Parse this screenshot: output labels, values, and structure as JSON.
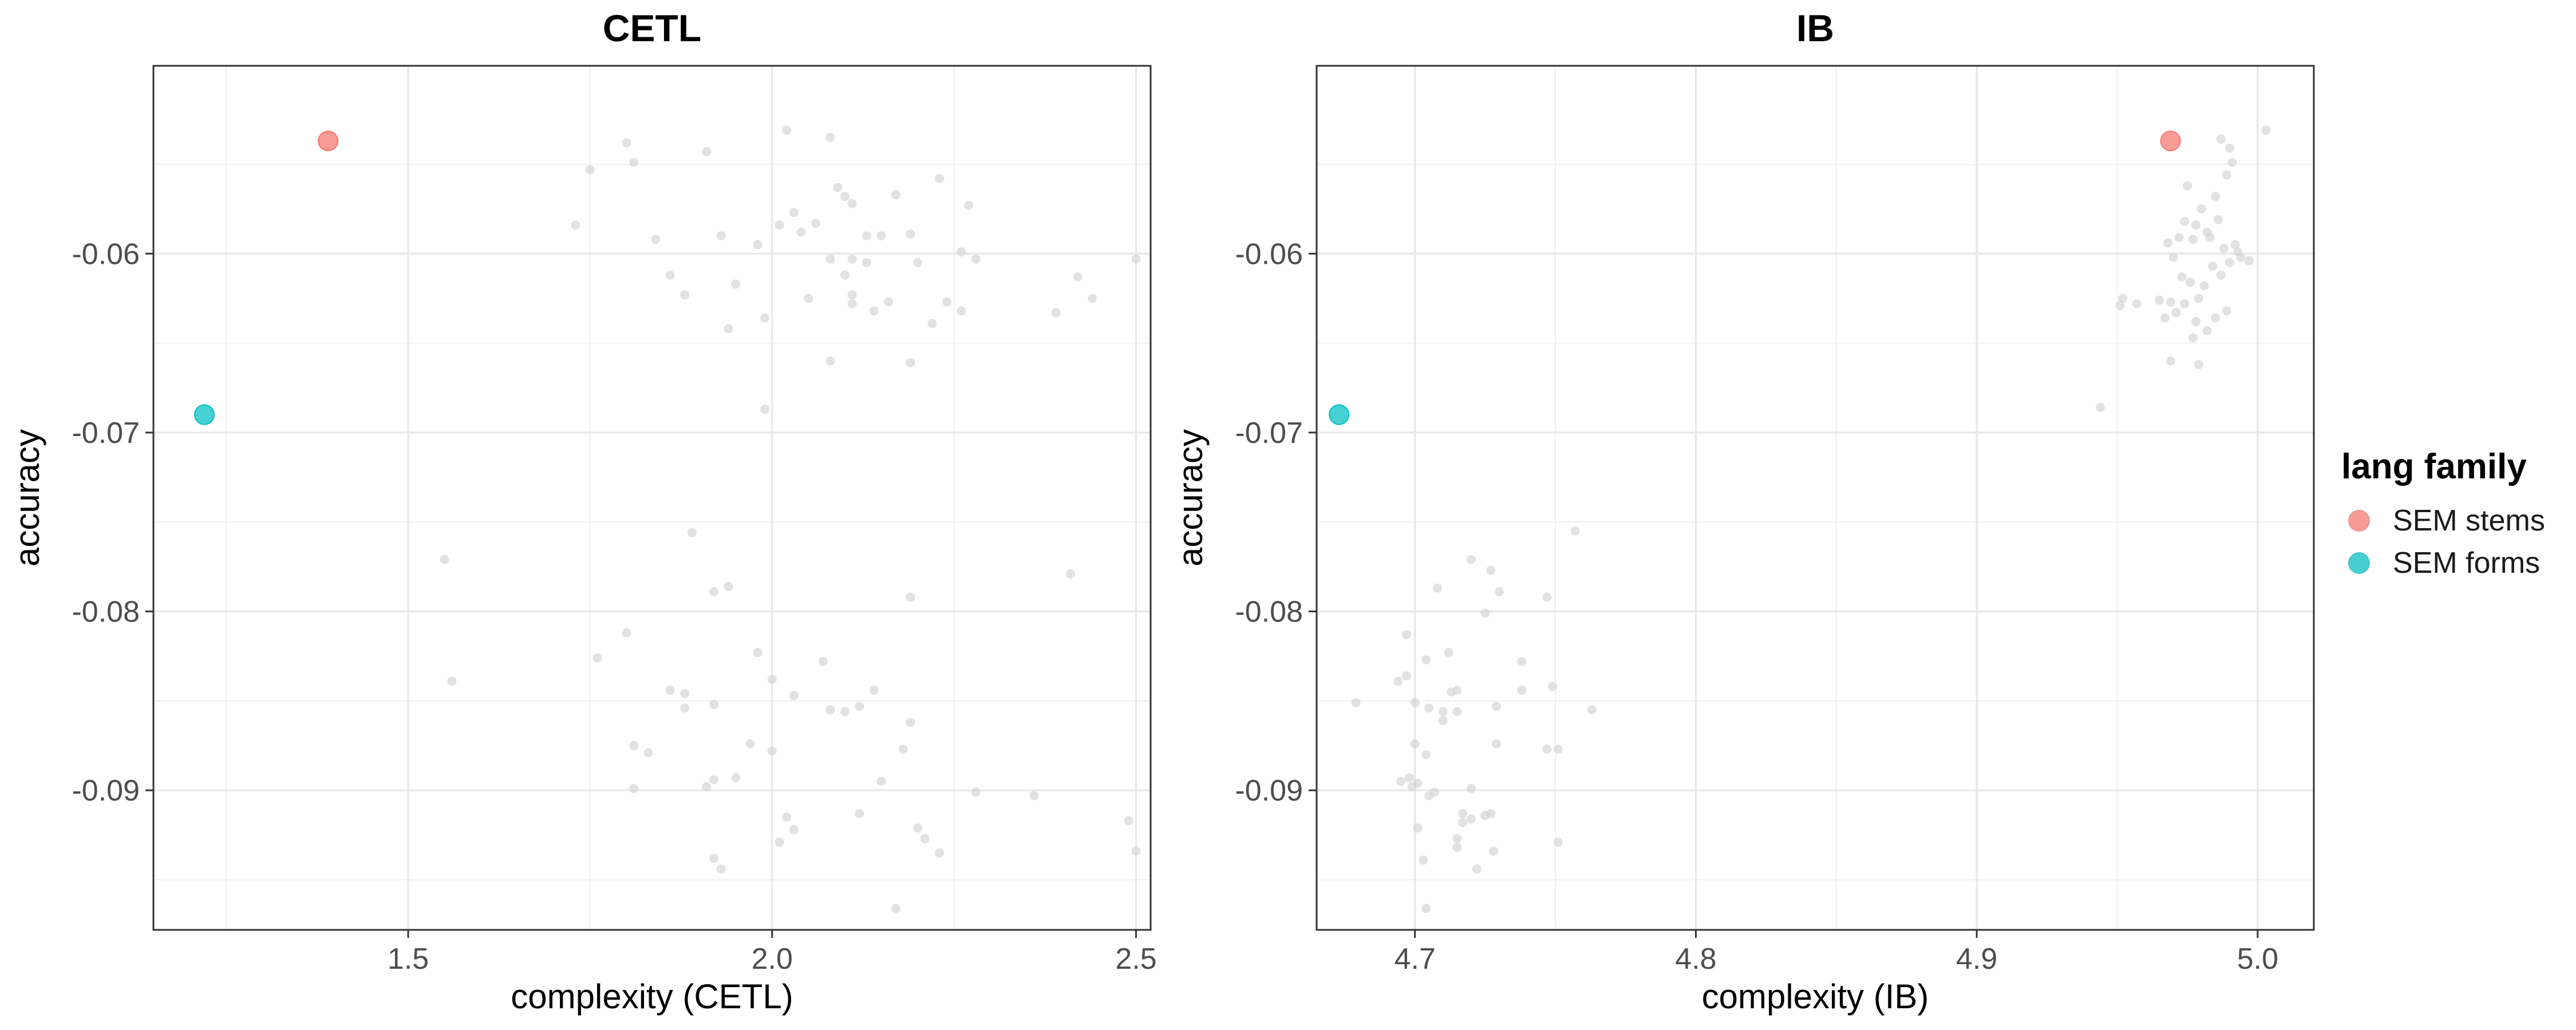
{
  "legend": {
    "title": "lang family",
    "items": [
      {
        "label": "SEM stems",
        "color": "#F8766D"
      },
      {
        "label": "SEM forms",
        "color": "#00BFC4"
      }
    ]
  },
  "chart_data": [
    {
      "type": "scatter",
      "title": "CETL",
      "xlabel": "complexity (CETL)",
      "ylabel": "accuracy",
      "xlim": [
        1.15,
        2.52
      ],
      "ylim": [
        -0.0978,
        -0.0495
      ],
      "xticks": [
        1.5,
        2.0,
        2.5
      ],
      "xtick_labels": [
        "1.5",
        "2.0",
        "2.5"
      ],
      "yticks": [
        -0.06,
        -0.07,
        -0.08,
        -0.09
      ],
      "ytick_labels": [
        "-0.06",
        "-0.07",
        "-0.08",
        "-0.09"
      ],
      "grid": true,
      "highlight": [
        {
          "series": "SEM stems",
          "x": 1.39,
          "y": -0.0537,
          "color": "#F8766D"
        },
        {
          "series": "SEM forms",
          "x": 1.22,
          "y": -0.069,
          "color": "#00BFC4"
        }
      ],
      "background_points": [
        [
          1.8,
          -0.0538
        ],
        [
          1.75,
          -0.0553
        ],
        [
          1.73,
          -0.0584
        ],
        [
          1.81,
          -0.0549
        ],
        [
          1.84,
          -0.0592
        ],
        [
          1.91,
          -0.0543
        ],
        [
          2.02,
          -0.0531
        ],
        [
          2.08,
          -0.0535
        ],
        [
          1.93,
          -0.059
        ],
        [
          1.95,
          -0.0617
        ],
        [
          1.86,
          -0.0612
        ],
        [
          1.88,
          -0.0623
        ],
        [
          1.94,
          -0.0642
        ],
        [
          1.99,
          -0.0636
        ],
        [
          1.98,
          -0.0595
        ],
        [
          2.01,
          -0.0584
        ],
        [
          2.03,
          -0.0577
        ],
        [
          2.04,
          -0.0588
        ],
        [
          2.06,
          -0.0583
        ],
        [
          2.09,
          -0.0563
        ],
        [
          2.1,
          -0.0568
        ],
        [
          2.11,
          -0.0572
        ],
        [
          2.13,
          -0.059
        ],
        [
          2.15,
          -0.059
        ],
        [
          2.17,
          -0.0567
        ],
        [
          2.19,
          -0.0589
        ],
        [
          2.23,
          -0.0558
        ],
        [
          2.27,
          -0.0573
        ],
        [
          2.08,
          -0.0603
        ],
        [
          2.1,
          -0.0612
        ],
        [
          2.11,
          -0.0603
        ],
        [
          2.13,
          -0.0605
        ],
        [
          2.14,
          -0.0632
        ],
        [
          2.11,
          -0.0623
        ],
        [
          2.16,
          -0.0627
        ],
        [
          2.2,
          -0.0605
        ],
        [
          2.22,
          -0.0639
        ],
        [
          2.24,
          -0.0627
        ],
        [
          2.26,
          -0.0599
        ],
        [
          2.28,
          -0.0603
        ],
        [
          2.26,
          -0.0632
        ],
        [
          2.39,
          -0.0633
        ],
        [
          2.42,
          -0.0613
        ],
        [
          2.44,
          -0.0625
        ],
        [
          2.5,
          -0.0603
        ],
        [
          2.08,
          -0.066
        ],
        [
          2.19,
          -0.0661
        ],
        [
          1.99,
          -0.0687
        ],
        [
          2.05,
          -0.0625
        ],
        [
          2.11,
          -0.0628
        ],
        [
          1.55,
          -0.0771
        ],
        [
          1.56,
          -0.0839
        ],
        [
          1.89,
          -0.0756
        ],
        [
          1.92,
          -0.0789
        ],
        [
          1.94,
          -0.0786
        ],
        [
          2.41,
          -0.0779
        ],
        [
          1.8,
          -0.0812
        ],
        [
          1.76,
          -0.0826
        ],
        [
          1.98,
          -0.0823
        ],
        [
          2.07,
          -0.0828
        ],
        [
          2.19,
          -0.0792
        ],
        [
          1.86,
          -0.0844
        ],
        [
          1.88,
          -0.0846
        ],
        [
          1.88,
          -0.0854
        ],
        [
          1.92,
          -0.0852
        ],
        [
          2.0,
          -0.0838
        ],
        [
          2.03,
          -0.0847
        ],
        [
          2.08,
          -0.0855
        ],
        [
          2.1,
          -0.0856
        ],
        [
          2.12,
          -0.0853
        ],
        [
          2.14,
          -0.0844
        ],
        [
          2.19,
          -0.0862
        ],
        [
          1.81,
          -0.0875
        ],
        [
          1.83,
          -0.0879
        ],
        [
          1.92,
          -0.0894
        ],
        [
          1.95,
          -0.0893
        ],
        [
          1.97,
          -0.0874
        ],
        [
          2.0,
          -0.0878
        ],
        [
          2.15,
          -0.0895
        ],
        [
          2.18,
          -0.0877
        ],
        [
          2.28,
          -0.0901
        ],
        [
          2.36,
          -0.0903
        ],
        [
          1.81,
          -0.0899
        ],
        [
          1.91,
          -0.0898
        ],
        [
          2.02,
          -0.0915
        ],
        [
          2.03,
          -0.0922
        ],
        [
          2.12,
          -0.0913
        ],
        [
          2.01,
          -0.0929
        ],
        [
          2.2,
          -0.0921
        ],
        [
          2.21,
          -0.0927
        ],
        [
          2.23,
          -0.0935
        ],
        [
          1.92,
          -0.0938
        ],
        [
          1.93,
          -0.0944
        ],
        [
          2.49,
          -0.0917
        ],
        [
          2.5,
          -0.0934
        ],
        [
          2.17,
          -0.0966
        ]
      ]
    },
    {
      "type": "scatter",
      "title": "IB",
      "xlabel": "complexity (IB)",
      "ylabel": "accuracy",
      "xlim": [
        4.665,
        5.02
      ],
      "ylim": [
        -0.0978,
        -0.0495
      ],
      "xticks": [
        4.7,
        4.8,
        4.9,
        5.0
      ],
      "xtick_labels": [
        "4.7",
        "4.8",
        "4.9",
        "5.0"
      ],
      "yticks": [
        -0.06,
        -0.07,
        -0.08,
        -0.09
      ],
      "ytick_labels": [
        "-0.06",
        "-0.07",
        "-0.08",
        "-0.09"
      ],
      "grid": true,
      "highlight": [
        {
          "series": "SEM stems",
          "x": 4.969,
          "y": -0.0537,
          "color": "#F8766D"
        },
        {
          "series": "SEM forms",
          "x": 4.673,
          "y": -0.069,
          "color": "#00BFC4"
        }
      ],
      "background_points": [
        [
          4.987,
          -0.0536
        ],
        [
          4.99,
          -0.0541
        ],
        [
          4.991,
          -0.0549
        ],
        [
          4.989,
          -0.0556
        ],
        [
          5.003,
          -0.0531
        ],
        [
          4.975,
          -0.0562
        ],
        [
          4.98,
          -0.0575
        ],
        [
          4.978,
          -0.0584
        ],
        [
          4.982,
          -0.0588
        ],
        [
          4.985,
          -0.0568
        ],
        [
          4.972,
          -0.0591
        ],
        [
          4.974,
          -0.0582
        ],
        [
          4.977,
          -0.0592
        ],
        [
          4.983,
          -0.0591
        ],
        [
          4.986,
          -0.0581
        ],
        [
          4.988,
          -0.0597
        ],
        [
          4.992,
          -0.0595
        ],
        [
          4.994,
          -0.0602
        ],
        [
          4.997,
          -0.0604
        ],
        [
          4.99,
          -0.0605
        ],
        [
          4.968,
          -0.0594
        ],
        [
          4.97,
          -0.0602
        ],
        [
          4.973,
          -0.0613
        ],
        [
          4.976,
          -0.0616
        ],
        [
          4.979,
          -0.0625
        ],
        [
          4.981,
          -0.0618
        ],
        [
          4.984,
          -0.0607
        ],
        [
          4.987,
          -0.0612
        ],
        [
          4.989,
          -0.0632
        ],
        [
          4.969,
          -0.0627
        ],
        [
          4.971,
          -0.0633
        ],
        [
          4.974,
          -0.0628
        ],
        [
          4.978,
          -0.0638
        ],
        [
          4.982,
          -0.0643
        ],
        [
          4.985,
          -0.0636
        ],
        [
          4.952,
          -0.0625
        ],
        [
          4.957,
          -0.0628
        ],
        [
          4.951,
          -0.0629
        ],
        [
          4.965,
          -0.0626
        ],
        [
          4.967,
          -0.0636
        ],
        [
          4.977,
          -0.0647
        ],
        [
          4.969,
          -0.066
        ],
        [
          4.979,
          -0.0662
        ],
        [
          4.944,
          -0.0686
        ],
        [
          4.993,
          -0.0599
        ],
        [
          4.757,
          -0.0755
        ],
        [
          4.72,
          -0.0771
        ],
        [
          4.727,
          -0.0777
        ],
        [
          4.708,
          -0.0787
        ],
        [
          4.73,
          -0.0789
        ],
        [
          4.747,
          -0.0792
        ],
        [
          4.725,
          -0.0801
        ],
        [
          4.712,
          -0.0823
        ],
        [
          4.704,
          -0.0827
        ],
        [
          4.738,
          -0.0828
        ],
        [
          4.697,
          -0.0813
        ],
        [
          4.694,
          -0.0839
        ],
        [
          4.697,
          -0.0836
        ],
        [
          4.713,
          -0.0845
        ],
        [
          4.715,
          -0.0844
        ],
        [
          4.738,
          -0.0844
        ],
        [
          4.749,
          -0.0842
        ],
        [
          4.679,
          -0.0851
        ],
        [
          4.7,
          -0.0851
        ],
        [
          4.705,
          -0.0854
        ],
        [
          4.71,
          -0.0856
        ],
        [
          4.71,
          -0.0861
        ],
        [
          4.715,
          -0.0856
        ],
        [
          4.729,
          -0.0853
        ],
        [
          4.763,
          -0.0855
        ],
        [
          4.7,
          -0.0874
        ],
        [
          4.704,
          -0.088
        ],
        [
          4.729,
          -0.0874
        ],
        [
          4.747,
          -0.0877
        ],
        [
          4.751,
          -0.0877
        ],
        [
          4.695,
          -0.0895
        ],
        [
          4.698,
          -0.0893
        ],
        [
          4.701,
          -0.0896
        ],
        [
          4.699,
          -0.0898
        ],
        [
          4.72,
          -0.0899
        ],
        [
          4.705,
          -0.0903
        ],
        [
          4.707,
          -0.0901
        ],
        [
          4.717,
          -0.0913
        ],
        [
          4.72,
          -0.0916
        ],
        [
          4.725,
          -0.0914
        ],
        [
          4.727,
          -0.0913
        ],
        [
          4.701,
          -0.0921
        ],
        [
          4.715,
          -0.0927
        ],
        [
          4.728,
          -0.0934
        ],
        [
          4.751,
          -0.0929
        ],
        [
          4.703,
          -0.0939
        ],
        [
          4.722,
          -0.0944
        ],
        [
          4.715,
          -0.0932
        ],
        [
          4.704,
          -0.0966
        ],
        [
          4.717,
          -0.0918
        ]
      ]
    }
  ]
}
